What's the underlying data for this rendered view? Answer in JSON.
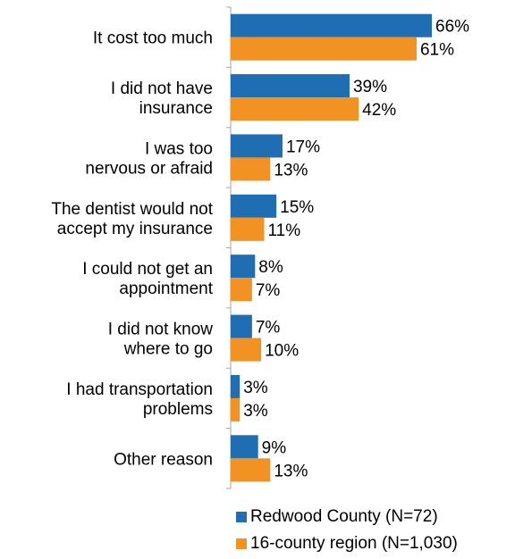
{
  "chart_data": {
    "type": "bar",
    "orientation": "horizontal",
    "categories": [
      [
        "It cost too much"
      ],
      [
        "I did not have",
        "insurance"
      ],
      [
        "I was too",
        "nervous or afraid"
      ],
      [
        "The dentist would not",
        "accept my insurance"
      ],
      [
        "I could not get an",
        "appointment"
      ],
      [
        "I did not know",
        "where to go"
      ],
      [
        "I had transportation",
        "problems"
      ],
      [
        "Other reason"
      ]
    ],
    "series": [
      {
        "name": "Redwood County (N=72)",
        "color": "#1f6db3",
        "values": [
          66,
          39,
          17,
          15,
          8,
          7,
          3,
          9
        ],
        "labels": [
          "66%",
          "39%",
          "17%",
          "15%",
          "8%",
          "7%",
          "3%",
          "9%"
        ]
      },
      {
        "name": "16-county region (N=1,030)",
        "color": "#f29222",
        "values": [
          61,
          42,
          13,
          11,
          7,
          10,
          3,
          13
        ],
        "labels": [
          "61%",
          "42%",
          "13%",
          "11%",
          "7%",
          "10%",
          "3%",
          "13%"
        ]
      }
    ],
    "xlim": [
      0,
      100
    ],
    "grid": false,
    "legend_position": "bottom-right"
  }
}
